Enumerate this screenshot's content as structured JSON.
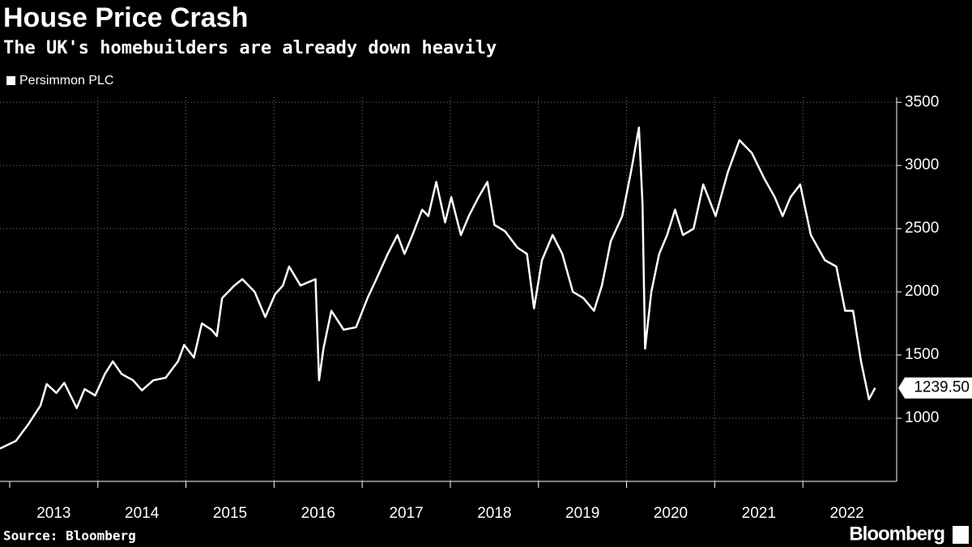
{
  "chart_data": {
    "type": "line",
    "title": "House Price Crash",
    "subtitle": "The UK's homebuilders are already down heavily",
    "source": "Source: Bloomberg",
    "logo": "Bloomberg",
    "x": [
      2012.89,
      2013.07,
      2013.21,
      2013.35,
      2013.42,
      2013.53,
      2013.62,
      2013.76,
      2013.85,
      2013.97,
      2014.08,
      2014.17,
      2014.27,
      2014.4,
      2014.5,
      2014.63,
      2014.77,
      2014.91,
      2014.98,
      2015.09,
      2015.18,
      2015.29,
      2015.35,
      2015.41,
      2015.55,
      2015.64,
      2015.78,
      2015.9,
      2016.01,
      2016.1,
      2016.17,
      2016.3,
      2016.47,
      2016.51,
      2016.56,
      2016.65,
      2016.79,
      2016.93,
      2017.06,
      2017.16,
      2017.29,
      2017.4,
      2017.48,
      2017.57,
      2017.68,
      2017.75,
      2017.84,
      2017.94,
      2018.01,
      2018.12,
      2018.21,
      2018.32,
      2018.42,
      2018.5,
      2018.62,
      2018.76,
      2018.87,
      2018.95,
      2019.04,
      2019.16,
      2019.27,
      2019.39,
      2019.51,
      2019.63,
      2019.72,
      2019.82,
      2019.95,
      2020.05,
      2020.14,
      2020.18,
      2020.21,
      2020.28,
      2020.37,
      2020.46,
      2020.55,
      2020.64,
      2020.76,
      2020.87,
      2021.01,
      2021.15,
      2021.28,
      2021.42,
      2021.56,
      2021.68,
      2021.77,
      2021.86,
      2021.97,
      2022.09,
      2022.25,
      2022.38,
      2022.48,
      2022.57,
      2022.66,
      2022.75,
      2022.82
    ],
    "series": [
      {
        "name": "Persimmon PLC",
        "color": "#ffffff",
        "values": [
          760,
          820,
          950,
          1100,
          1270,
          1200,
          1280,
          1080,
          1230,
          1180,
          1350,
          1450,
          1350,
          1300,
          1220,
          1300,
          1320,
          1450,
          1580,
          1480,
          1750,
          1700,
          1650,
          1950,
          2050,
          2100,
          2000,
          1800,
          1980,
          2050,
          2200,
          2050,
          2100,
          1300,
          1550,
          1850,
          1700,
          1720,
          1950,
          2100,
          2300,
          2450,
          2300,
          2450,
          2650,
          2600,
          2870,
          2550,
          2750,
          2450,
          2600,
          2750,
          2870,
          2530,
          2480,
          2350,
          2300,
          1870,
          2250,
          2450,
          2300,
          2000,
          1950,
          1850,
          2050,
          2400,
          2600,
          2950,
          3300,
          2700,
          1550,
          2000,
          2300,
          2450,
          2650,
          2450,
          2500,
          2850,
          2600,
          2950,
          3200,
          3100,
          2900,
          2750,
          2600,
          2750,
          2850,
          2450,
          2250,
          2200,
          1850,
          1850,
          1450,
          1150,
          1239.5
        ],
        "end_label": {
          "value": 1239.5,
          "label": "1239.50"
        }
      }
    ],
    "xlim": [
      2012.89,
      2023.0
    ],
    "xticks": [
      2013,
      2014,
      2015,
      2016,
      2017,
      2018,
      2019,
      2020,
      2021,
      2022
    ],
    "ylim": [
      500,
      3540
    ],
    "yticks": [
      1000,
      1500,
      2000,
      2500,
      3000,
      3500
    ],
    "grid": true
  }
}
